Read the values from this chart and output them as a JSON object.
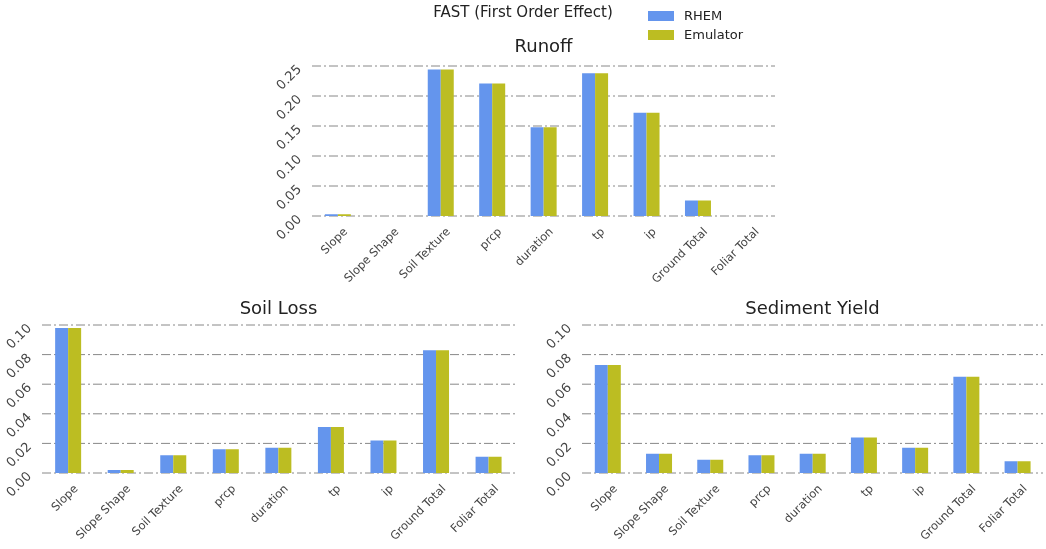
{
  "chart_data": [
    {
      "type": "other",
      "title": "FAST (First Order Effect)"
    },
    {
      "type": "bar",
      "title": "Runoff",
      "categories": [
        "Slope",
        "Slope Shape",
        "Soil Texture",
        "prcp",
        "duration",
        "tp",
        "ip",
        "Ground Total",
        "Foliar Total"
      ],
      "series": [
        {
          "name": "RHEM",
          "color": "#6495ed",
          "values": [
            0.003,
            0,
            0.244,
            0.221,
            0.148,
            0.238,
            0.172,
            0.026,
            0
          ]
        },
        {
          "name": "Emulator",
          "color": "#bcbd22",
          "values": [
            0.003,
            0,
            0.244,
            0.221,
            0.148,
            0.238,
            0.172,
            0.026,
            0
          ]
        }
      ],
      "ylim": [
        0,
        0.25
      ],
      "yticks": [
        {
          "value": 0,
          "label": "0.00"
        },
        0.05,
        {
          "value": 0.1,
          "label": "0.10"
        },
        0.15,
        {
          "value": 0.2,
          "label": "0.20"
        },
        0.25
      ],
      "grid": "y",
      "legend": "top right"
    },
    {
      "type": "bar",
      "title": "Soil Loss",
      "categories": [
        "Slope",
        "Slope Shape",
        "Soil Texture",
        "prcp",
        "duration",
        "tp",
        "ip",
        "Ground Total",
        "Foliar Total"
      ],
      "series": [
        {
          "color": "#6495ed",
          "values": [
            0.098,
            0.002,
            0.012,
            0.016,
            0.017,
            0.031,
            0.022,
            0.083,
            0.011
          ]
        },
        {
          "color": "#bcbd22",
          "values": [
            0.098,
            0.002,
            0.012,
            0.016,
            0.017,
            0.031,
            0.022,
            0.083,
            0.011
          ]
        }
      ],
      "ylim": [
        0,
        0.1
      ],
      "yticks": [
        {
          "value": 0,
          "label": "0.00"
        },
        0.02,
        0.04,
        0.06,
        0.08,
        {
          "value": 0.1,
          "label": "0.10"
        }
      ],
      "grid": "y"
    },
    {
      "type": "bar",
      "title": "Sediment Yield",
      "categories": [
        "Slope",
        "Slope Shape",
        "Soil Texture",
        "prcp",
        "duration",
        "tp",
        "ip",
        "Ground Total",
        "Foliar Total"
      ],
      "series": [
        {
          "color": "#6495ed",
          "values": [
            0.073,
            0.013,
            0.009,
            0.012,
            0.013,
            0.024,
            0.017,
            0.065,
            0.008
          ]
        },
        {
          "color": "#bcbd22",
          "values": [
            0.073,
            0.013,
            0.009,
            0.012,
            0.013,
            0.024,
            0.017,
            0.065,
            0.008
          ]
        }
      ],
      "ylim": [
        0,
        0.1
      ],
      "yticks": [
        {
          "value": 0,
          "label": "0.00"
        },
        0.02,
        0.04,
        0.06,
        0.08,
        {
          "value": 0.1,
          "label": "0.10"
        }
      ],
      "grid": "y"
    }
  ]
}
